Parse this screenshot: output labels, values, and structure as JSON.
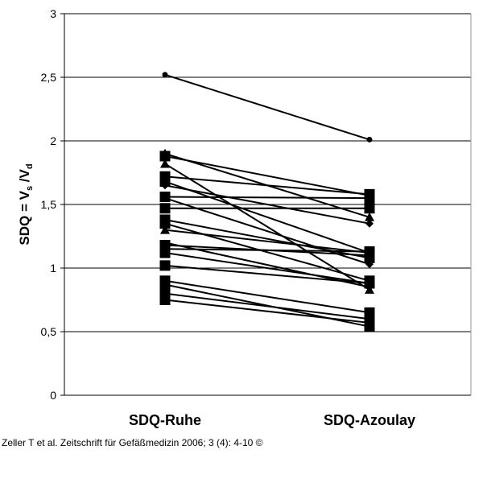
{
  "citation": "Zeller T et al. Zeitschrift für Gefäßmedizin 2006; 3 (4): 4-10 ©",
  "chart_data": {
    "type": "line",
    "ylabel_main": "SDQ = V",
    "ylabel_sub1": "s",
    "ylabel_mid": " /V",
    "ylabel_sub2": "d",
    "categories": [
      "SDQ-Ruhe",
      "SDQ-Azoulay"
    ],
    "ylim": [
      0,
      3
    ],
    "yticks": [
      {
        "value": 0,
        "label": "0"
      },
      {
        "value": 0.5,
        "label": "0,5"
      },
      {
        "value": 1,
        "label": "1"
      },
      {
        "value": 1.5,
        "label": "1,5"
      },
      {
        "value": 2,
        "label": "2"
      },
      {
        "value": 2.5,
        "label": "2,5"
      },
      {
        "value": 3,
        "label": "3"
      }
    ],
    "grid": true,
    "colors": {
      "line": "#000000",
      "grid": "#000000",
      "background": "#ffffff"
    },
    "pairs": [
      {
        "ruhe": 2.52,
        "azoulay": 2.01,
        "marker": "circle"
      },
      {
        "ruhe": 1.9,
        "azoulay": 1.4,
        "marker": "triangle"
      },
      {
        "ruhe": 1.88,
        "azoulay": 1.57,
        "marker": "square"
      },
      {
        "ruhe": 1.82,
        "azoulay": 0.83,
        "marker": "triangle"
      },
      {
        "ruhe": 1.72,
        "azoulay": 1.58,
        "marker": "square"
      },
      {
        "ruhe": 1.68,
        "azoulay": 1.12,
        "marker": "square"
      },
      {
        "ruhe": 1.65,
        "azoulay": 1.35,
        "marker": "diamond"
      },
      {
        "ruhe": 1.56,
        "azoulay": 1.55,
        "marker": "square"
      },
      {
        "ruhe": 1.55,
        "azoulay": 1.03,
        "marker": "diamond"
      },
      {
        "ruhe": 1.47,
        "azoulay": 1.47,
        "marker": "square"
      },
      {
        "ruhe": 1.38,
        "azoulay": 1.08,
        "marker": "square"
      },
      {
        "ruhe": 1.35,
        "azoulay": 0.9,
        "marker": "square"
      },
      {
        "ruhe": 1.3,
        "azoulay": 1.12,
        "marker": "triangle"
      },
      {
        "ruhe": 1.2,
        "azoulay": 0.85,
        "marker": "circle"
      },
      {
        "ruhe": 1.18,
        "azoulay": 1.1,
        "marker": "square"
      },
      {
        "ruhe": 1.15,
        "azoulay": 1.13,
        "marker": "square"
      },
      {
        "ruhe": 1.12,
        "azoulay": 0.88,
        "marker": "square"
      },
      {
        "ruhe": 1.02,
        "azoulay": 0.88,
        "marker": "square"
      },
      {
        "ruhe": 0.9,
        "azoulay": 0.65,
        "marker": "square"
      },
      {
        "ruhe": 0.8,
        "azoulay": 0.6,
        "marker": "square"
      },
      {
        "ruhe": 0.75,
        "azoulay": 0.57,
        "marker": "square"
      },
      {
        "ruhe": 0.87,
        "azoulay": 0.54,
        "marker": "square"
      }
    ]
  }
}
